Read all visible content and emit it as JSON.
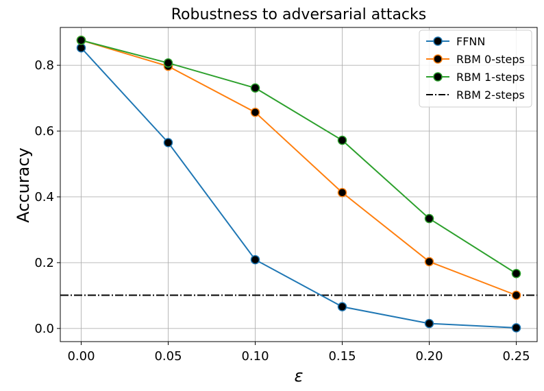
{
  "chart_data": {
    "type": "line",
    "title": "Robustness to adversarial attacks",
    "xlabel": "ε",
    "ylabel": "Accuracy",
    "x": [
      0.0,
      0.05,
      0.1,
      0.15,
      0.2,
      0.25
    ],
    "x_tick_labels": [
      "0.00",
      "0.05",
      "0.10",
      "0.15",
      "0.20",
      "0.25"
    ],
    "y_ticks": [
      0.0,
      0.2,
      0.4,
      0.6,
      0.8
    ],
    "y_tick_labels": [
      "0.0",
      "0.2",
      "0.4",
      "0.6",
      "0.8"
    ],
    "xlim": [
      -0.012,
      0.262
    ],
    "ylim": [
      -0.04,
      0.915
    ],
    "grid": true,
    "legend_position": "top-right",
    "series": [
      {
        "name": "FFNN",
        "values": [
          0.853,
          0.565,
          0.209,
          0.066,
          0.015,
          0.002
        ],
        "color": "#1f77b4",
        "style": "solid-marker"
      },
      {
        "name": "RBM 0-steps",
        "values": [
          0.876,
          0.797,
          0.657,
          0.413,
          0.203,
          0.101
        ],
        "color": "#ff7f0e",
        "style": "solid-marker"
      },
      {
        "name": "RBM 1-steps",
        "values": [
          0.876,
          0.807,
          0.731,
          0.572,
          0.334,
          0.167
        ],
        "color": "#2ca02c",
        "style": "solid-marker"
      }
    ],
    "reference_lines": [
      {
        "name": "RBM 2-steps",
        "y": 0.101,
        "color": "#000000",
        "style": "dashdot"
      }
    ]
  }
}
